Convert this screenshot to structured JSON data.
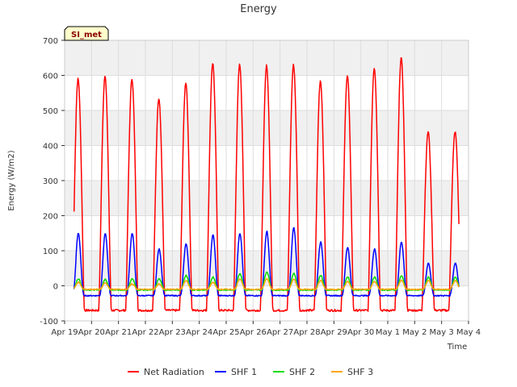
{
  "chart_data": {
    "type": "line",
    "title": "Energy",
    "xlabel": "Time",
    "ylabel": "Energy (W/m2)",
    "ylim": [
      -100,
      700
    ],
    "yticks": [
      -100,
      0,
      100,
      200,
      300,
      400,
      500,
      600,
      700
    ],
    "xlim": [
      "2024-04-19",
      "2024-05-04"
    ],
    "xticks": [
      "Apr 19",
      "Apr 20",
      "Apr 21",
      "Apr 22",
      "Apr 23",
      "Apr 24",
      "Apr 25",
      "Apr 26",
      "Apr 27",
      "Apr 28",
      "Apr 29",
      "Apr 30",
      "May 1",
      "May 2",
      "May 3",
      "May 4"
    ],
    "grid": true,
    "background_bands": true,
    "annotation": "SI_met",
    "legend_position": "bottom-center",
    "data_range_days": [
      0.35,
      14.65
    ],
    "series": [
      {
        "name": "Net Radiation",
        "color": "#ff0000",
        "night_value": -70,
        "daily_peaks": [
          590,
          600,
          590,
          535,
          580,
          635,
          630,
          628,
          630,
          585,
          600,
          622,
          650,
          440
        ]
      },
      {
        "name": "SHF 1",
        "color": "#0000ff",
        "night_value": -28,
        "daily_peaks": [
          150,
          150,
          150,
          105,
          120,
          145,
          150,
          155,
          165,
          125,
          110,
          105,
          125,
          65
        ]
      },
      {
        "name": "SHF 2",
        "color": "#00dd00",
        "night_value": -12,
        "daily_peaks": [
          20,
          18,
          20,
          20,
          30,
          25,
          35,
          40,
          35,
          30,
          25,
          25,
          28,
          25
        ]
      },
      {
        "name": "SHF 3",
        "color": "#ffa500",
        "night_value": -10,
        "daily_peaks": [
          10,
          8,
          5,
          5,
          15,
          10,
          20,
          20,
          18,
          15,
          12,
          12,
          15,
          15
        ]
      }
    ]
  }
}
